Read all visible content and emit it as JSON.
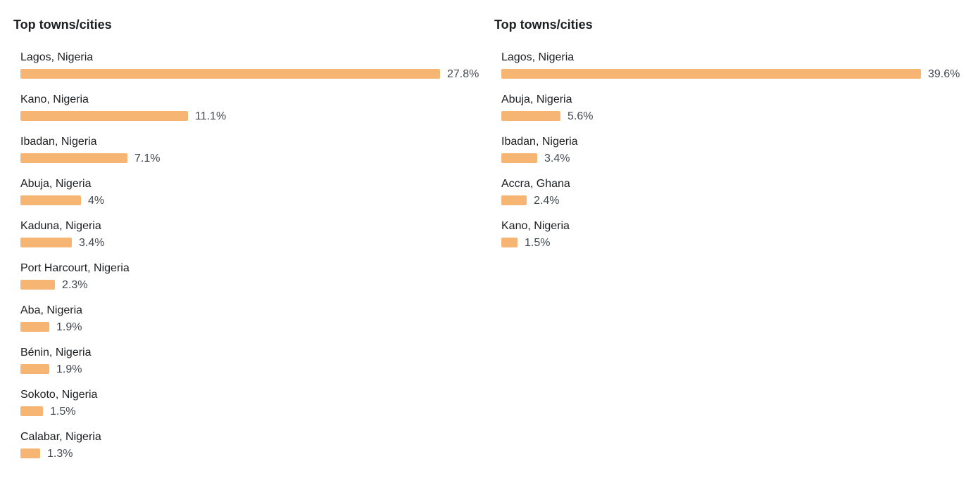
{
  "colors": {
    "bar": "#f7b574",
    "title_text": "#1c1e21",
    "value_text": "#444950"
  },
  "panels": [
    {
      "title": "Top towns/cities",
      "rows": [
        {
          "label": "Lagos, Nigeria",
          "value": "27.8%"
        },
        {
          "label": "Kano, Nigeria",
          "value": "11.1%"
        },
        {
          "label": "Ibadan, Nigeria",
          "value": "7.1%"
        },
        {
          "label": "Abuja, Nigeria",
          "value": "4%"
        },
        {
          "label": "Kaduna, Nigeria",
          "value": "3.4%"
        },
        {
          "label": "Port Harcourt, Nigeria",
          "value": "2.3%"
        },
        {
          "label": "Aba, Nigeria",
          "value": "1.9%"
        },
        {
          "label": "Bénin, Nigeria",
          "value": "1.9%"
        },
        {
          "label": "Sokoto, Nigeria",
          "value": "1.5%"
        },
        {
          "label": "Calabar, Nigeria",
          "value": "1.3%"
        }
      ]
    },
    {
      "title": "Top towns/cities",
      "rows": [
        {
          "label": "Lagos, Nigeria",
          "value": "39.6%"
        },
        {
          "label": "Abuja, Nigeria",
          "value": "5.6%"
        },
        {
          "label": "Ibadan, Nigeria",
          "value": "3.4%"
        },
        {
          "label": "Accra, Ghana",
          "value": "2.4%"
        },
        {
          "label": "Kano, Nigeria",
          "value": "1.5%"
        }
      ]
    }
  ],
  "chart_data": [
    {
      "type": "bar",
      "orientation": "horizontal",
      "title": "Top towns/cities",
      "categories": [
        "Lagos, Nigeria",
        "Kano, Nigeria",
        "Ibadan, Nigeria",
        "Abuja, Nigeria",
        "Kaduna, Nigeria",
        "Port Harcourt, Nigeria",
        "Aba, Nigeria",
        "Bénin, Nigeria",
        "Sokoto, Nigeria",
        "Calabar, Nigeria"
      ],
      "values": [
        27.8,
        11.1,
        7.1,
        4,
        3.4,
        2.3,
        1.9,
        1.9,
        1.5,
        1.3
      ],
      "value_unit": "%"
    },
    {
      "type": "bar",
      "orientation": "horizontal",
      "title": "Top towns/cities",
      "categories": [
        "Lagos, Nigeria",
        "Abuja, Nigeria",
        "Ibadan, Nigeria",
        "Accra, Ghana",
        "Kano, Nigeria"
      ],
      "values": [
        39.6,
        5.6,
        3.4,
        2.4,
        1.5
      ],
      "value_unit": "%"
    }
  ]
}
